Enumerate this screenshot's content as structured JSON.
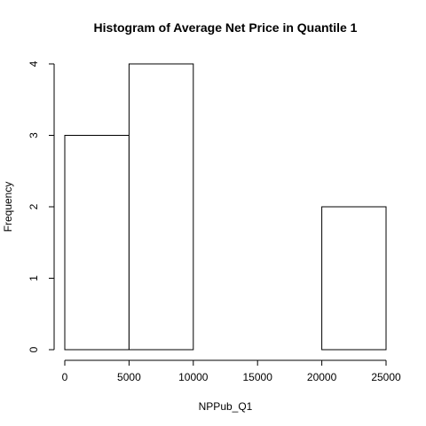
{
  "chart_data": {
    "type": "bar",
    "title": "Histogram of Average Net Price in Quantile 1",
    "xlabel": "NPPub_Q1",
    "ylabel": "Frequency",
    "bins": [
      {
        "start": 0,
        "end": 5000,
        "count": 3
      },
      {
        "start": 5000,
        "end": 10000,
        "count": 4
      },
      {
        "start": 10000,
        "end": 15000,
        "count": 0
      },
      {
        "start": 15000,
        "end": 20000,
        "count": 0
      },
      {
        "start": 20000,
        "end": 25000,
        "count": 2
      }
    ],
    "xlim": [
      0,
      25000
    ],
    "ylim": [
      0,
      4
    ],
    "xticks": [
      0,
      5000,
      10000,
      15000,
      20000,
      25000
    ],
    "yticks": [
      0,
      1,
      2,
      3,
      4
    ],
    "grid": false,
    "legend": "none",
    "colors": {
      "bar_fill": "#ffffff",
      "bar_stroke": "#000000",
      "axis": "#000000"
    }
  }
}
